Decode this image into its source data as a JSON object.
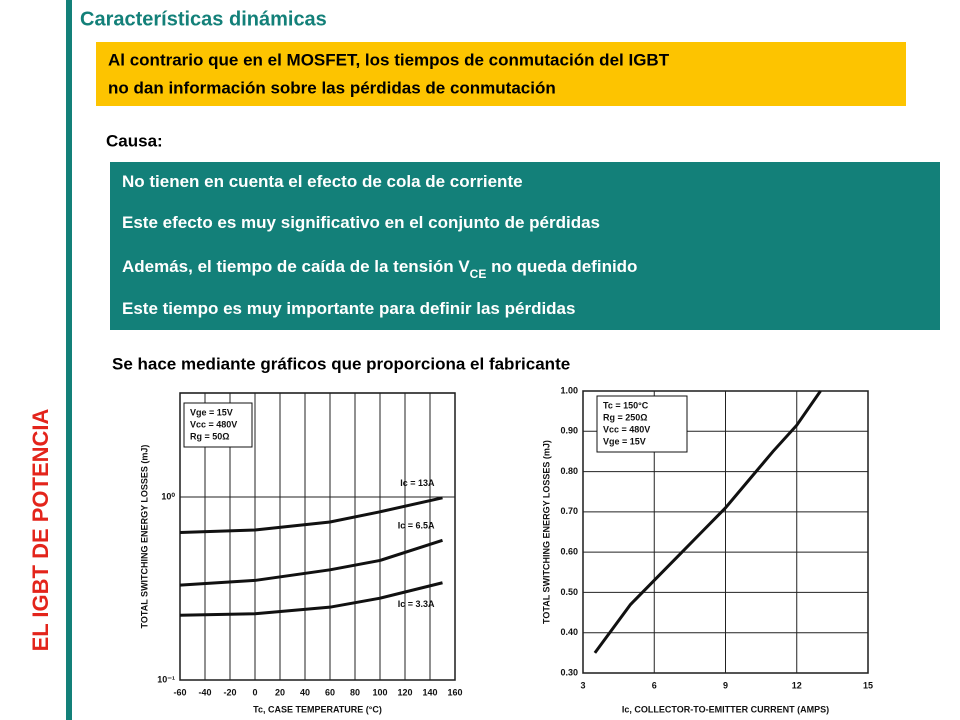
{
  "side_title": "EL IGBT  DE POTENCIA",
  "title": "Características dinámicas",
  "highlight": [
    "Al contrario que en el MOSFET, los tiempos de conmutación del IGBT",
    "no dan información sobre las pérdidas de conmutación"
  ],
  "cause_label": "Causa:",
  "causes": [
    [
      "No tienen en cuenta el efecto de cola de corriente"
    ],
    [
      "Este efecto es muy significativo en el conjunto de pérdidas"
    ],
    [
      "Además, el tiempo de caída de la tensión V",
      "CE",
      " no queda definido"
    ],
    [
      "Este tiempo es muy importante para definir las pérdidas"
    ]
  ],
  "graphs_note": "Se hace mediante gráficos que proporciona el fabricante",
  "chart_data": [
    {
      "type": "line",
      "x_label": "Tc, CASE TEMPERATURE (°C)",
      "y_label": "TOTAL SWITCHING ENERGY LOSSES (mJ)",
      "notes": [
        "Vge = 15V",
        "Vcc = 480V",
        "Rg = 50Ω"
      ],
      "log_y": true,
      "grid": true,
      "x": [
        -60,
        0,
        60,
        100,
        150
      ],
      "series": [
        {
          "name": "Ic = 13A",
          "color": "#111111",
          "values": [
            0.64,
            0.66,
            0.73,
            0.83,
            0.99
          ]
        },
        {
          "name": "Ic = 6.5A",
          "color": "#111111",
          "values": [
            0.33,
            0.35,
            0.4,
            0.45,
            0.58
          ]
        },
        {
          "name": "Ic = 3.3A",
          "color": "#111111",
          "values": [
            0.226,
            0.23,
            0.25,
            0.28,
            0.34
          ]
        }
      ],
      "xlim": [
        -60,
        160
      ],
      "xticks": [
        -60,
        -40,
        -20,
        0,
        20,
        40,
        60,
        80,
        100,
        120,
        140,
        160
      ],
      "ylim": [
        0.1,
        3.7
      ],
      "yticks": [
        {
          "value": 0.1,
          "label": "10⁻¹"
        },
        {
          "value": 1,
          "label": "10⁰"
        }
      ]
    },
    {
      "type": "line",
      "x_label": "Ic, COLLECTOR-TO-EMITTER CURRENT (AMPS)",
      "y_label": "TOTAL SWITCHING ENERGY LOSSES (mJ)",
      "notes": [
        "Tc = 150°C",
        "Rg = 250Ω",
        "Vcc = 480V",
        "Vge = 15V"
      ],
      "log_y": false,
      "grid": true,
      "x": [
        3.5,
        5,
        6,
        7,
        8,
        9,
        10,
        11,
        12,
        13
      ],
      "series": [
        {
          "name": "",
          "color": "#111111",
          "values": [
            0.35,
            0.47,
            0.53,
            0.59,
            0.65,
            0.71,
            0.78,
            0.85,
            0.915,
            1.0
          ]
        }
      ],
      "xlim": [
        3,
        15
      ],
      "xticks": [
        3,
        6,
        9,
        12,
        15
      ],
      "ylim": [
        0.3,
        1.0
      ],
      "yticks": [
        {
          "value": 0.3,
          "label": "0.30"
        },
        {
          "value": 0.4,
          "label": "0.40"
        },
        {
          "value": 0.5,
          "label": "0.50"
        },
        {
          "value": 0.6,
          "label": "0.60"
        },
        {
          "value": 0.7,
          "label": "0.70"
        },
        {
          "value": 0.8,
          "label": "0.80"
        },
        {
          "value": 0.9,
          "label": "0.90"
        },
        {
          "value": 1.0,
          "label": "1.00"
        }
      ]
    }
  ]
}
